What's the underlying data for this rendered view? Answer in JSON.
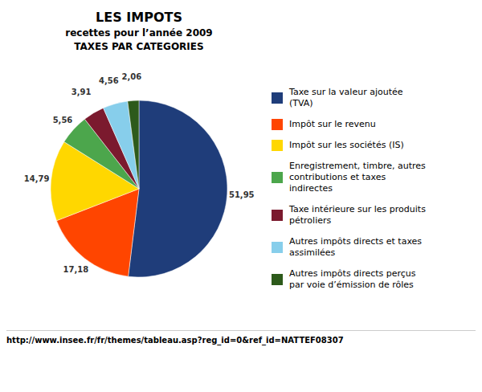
{
  "chart_data": {
    "type": "pie",
    "title": "LES IMPOTS",
    "subtitle": "recettes pour l’année 2009",
    "annotations": [
      "TAXES PAR CATEGORIES",
      "http://www.insee.fr/fr/themes/tableau.asp?reg_id=0&ref_id=NATTEF08307"
    ],
    "categories": [
      "Taxe sur la valeur ajoutée\n(TVA)",
      "Impôt sur le revenu",
      "Impôt sur les sociétés (IS)",
      "Enregistrement, timbre, autres\ncontributions et taxes\nindirectes",
      "Taxe intérieure sur les produits\npétroliers",
      "Autres impôts directs et taxes\nassimilées",
      "Autres impôts directs perçus\npar voie d’émission de rôles"
    ],
    "values": [
      51.95,
      17.18,
      14.79,
      5.56,
      3.91,
      4.56,
      2.06
    ],
    "value_labels": [
      "51,95",
      "17,18",
      "14,79",
      "5,56",
      "3,91",
      "4,56",
      "2,06"
    ],
    "colors": [
      "#1F3D7A",
      "#FF4500",
      "#FFD700",
      "#4CA64C",
      "#7B1A2E",
      "#87CEEB",
      "#2D5A1B"
    ],
    "data_labels": true,
    "legend": "right"
  }
}
